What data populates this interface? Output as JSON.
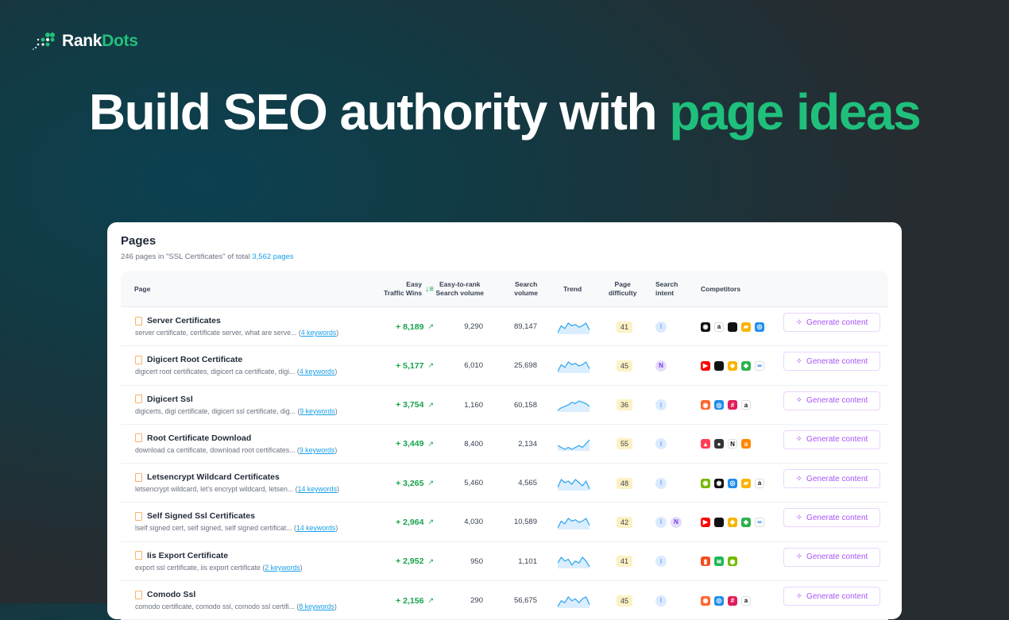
{
  "brand": {
    "name_a": "Rank",
    "name_b": "Dots"
  },
  "hero": {
    "text_a": "Build SEO authority with ",
    "text_b": "page ideas"
  },
  "panel": {
    "title": "Pages",
    "subtitle": "246 pages in \"SSL Certificates\" of total",
    "total_link": "3,562 pages"
  },
  "columns": {
    "page": "Page",
    "wins_1": "Easy",
    "wins_2": "Traffic Wins",
    "etr_1": "Easy-to-rank",
    "etr_2": "Search volume",
    "sv_1": "Search",
    "sv_2": "volume",
    "trend": "Trend",
    "pd_1": "Page",
    "pd_2": "difficulty",
    "si_1": "Search",
    "si_2": "intent",
    "competitors": "Competitors"
  },
  "colors": {
    "accent": "#1fbf7c",
    "link": "#1aa0e8",
    "win": "#16a34a",
    "generate": "#a855f7"
  },
  "generate_label": "Generate content",
  "rows": [
    {
      "name": "Server Certificates",
      "keywords": "server certificate, certificate server, what are serve...",
      "kw_count": "4 keywords",
      "wins": "+ 8,189",
      "etr": "9,290",
      "sv": "89,147",
      "trend": [
        2,
        7,
        5,
        9,
        7,
        8,
        6,
        7,
        9,
        4
      ],
      "difficulty": "41",
      "intent": [
        "I"
      ],
      "competitors": [
        "github",
        "amazon",
        "apple",
        "airtable",
        "intercom"
      ]
    },
    {
      "name": "Digicert Root Certificate",
      "keywords": "digicert root certificates, digicert ca certificate, digi...",
      "kw_count": "4 keywords",
      "wins": "+ 5,177",
      "etr": "6,010",
      "sv": "25,698",
      "trend": [
        2,
        7,
        5,
        9,
        7,
        8,
        6,
        7,
        9,
        4
      ],
      "difficulty": "45",
      "intent": [
        "N"
      ],
      "competitors": [
        "youtube",
        "apple",
        "sketch",
        "feedly",
        "meta"
      ]
    },
    {
      "name": "Digicert Ssl",
      "keywords": "digicerts, digi certificate, digicert ssl certificate, dig...",
      "kw_count": "9 keywords",
      "wins": "+ 3,754",
      "etr": "1,160",
      "sv": "60,158",
      "trend": [
        2,
        4,
        5,
        6,
        8,
        7,
        9,
        8,
        7,
        5
      ],
      "difficulty": "36",
      "intent": [
        "I"
      ],
      "competitors": [
        "semrush",
        "intercom",
        "slack",
        "amazon"
      ]
    },
    {
      "name": "Root Certificate Download",
      "keywords": "download ca certificate, download root certificates...",
      "kw_count": "9 keywords",
      "wins": "+ 3,449",
      "etr": "8,400",
      "sv": "2,134",
      "trend": [
        6,
        5,
        4,
        5,
        4,
        5,
        6,
        5,
        7,
        9
      ],
      "difficulty": "55",
      "intent": [
        "I"
      ],
      "competitors": [
        "monday",
        "circleci",
        "notion",
        "ahrefs"
      ]
    },
    {
      "name": "Letsencrypt Wildcard Certificates",
      "keywords": "letsencrypt wildcard, let's encrypt wildcard, letsen...",
      "kw_count": "14 keywords",
      "wins": "+ 3,265",
      "etr": "5,460",
      "sv": "4,565",
      "trend": [
        3,
        8,
        6,
        7,
        5,
        8,
        6,
        4,
        7,
        2
      ],
      "difficulty": "48",
      "intent": [
        "I"
      ],
      "competitors": [
        "nvidia",
        "github",
        "intercom",
        "airtable",
        "amazon"
      ]
    },
    {
      "name": "Self Signed Ssl Certificates",
      "keywords": "lself signed cert, self signed, self signed certificat...",
      "kw_count": "14 keywords",
      "wins": "+ 2,964",
      "etr": "4,030",
      "sv": "10,589",
      "trend": [
        2,
        7,
        5,
        9,
        7,
        8,
        6,
        7,
        9,
        4
      ],
      "difficulty": "42",
      "intent": [
        "I",
        "N"
      ],
      "competitors": [
        "youtube",
        "apple",
        "sketch",
        "feedly",
        "meta"
      ]
    },
    {
      "name": "Iis Export Certificate",
      "keywords": "export ssl certificate, iis export certificate",
      "kw_count": "2 keywords",
      "wins": "+ 2,952",
      "etr": "950",
      "sv": "1,101",
      "trend": [
        5,
        8,
        6,
        7,
        4,
        6,
        5,
        8,
        6,
        3
      ],
      "difficulty": "41",
      "intent": [
        "I"
      ],
      "competitors": [
        "figma",
        "spotify",
        "nvidia"
      ]
    },
    {
      "name": "Comodo Ssl",
      "keywords": "comodo certificate, comodo ssl, comodo ssl certifi...",
      "kw_count": "8 keywords",
      "wins": "+ 2,156",
      "etr": "290",
      "sv": "56,675",
      "trend": [
        3,
        6,
        5,
        8,
        6,
        7,
        5,
        7,
        8,
        4
      ],
      "difficulty": "45",
      "intent": [
        "I"
      ],
      "competitors": [
        "semrush",
        "intercom",
        "slack",
        "amazon"
      ]
    }
  ]
}
